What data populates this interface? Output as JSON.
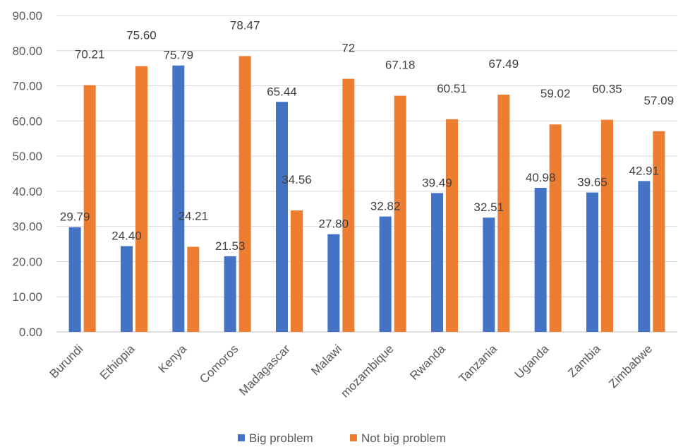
{
  "chart_data": {
    "type": "bar",
    "categories": [
      "Burundi",
      "Ethiopia",
      "Kenya",
      "Comoros",
      "Madagascar",
      "Malawi",
      "mozambique",
      "Rwanda",
      "Tanzania",
      "Uganda",
      "Zambia",
      "Zimbabwe"
    ],
    "series": [
      {
        "name": "Big problem",
        "color": "#4472C4",
        "values": [
          29.79,
          24.4,
          75.79,
          21.53,
          65.44,
          27.8,
          32.82,
          39.49,
          32.51,
          40.98,
          39.65,
          42.91
        ],
        "labels": [
          "29.79",
          "24.40",
          "75.79",
          "21.53",
          "65.44",
          "27.80",
          "32.82",
          "39.49",
          "32.51",
          "40.98",
          "39.65",
          "42.91"
        ]
      },
      {
        "name": "Not big problem",
        "color": "#ED7D31",
        "values": [
          70.21,
          75.6,
          24.21,
          78.47,
          34.56,
          72,
          67.18,
          60.51,
          67.49,
          59.02,
          60.35,
          57.09
        ],
        "labels": [
          "70.21",
          "75.60",
          "24.21",
          "78.47",
          "34.56",
          "72",
          "67.18",
          "60.51",
          "67.49",
          "59.02",
          "60.35",
          "57.09"
        ]
      }
    ],
    "ylim": [
      0,
      90
    ],
    "yticks": [
      "0.00",
      "10.00",
      "20.00",
      "30.00",
      "40.00",
      "50.00",
      "60.00",
      "70.00",
      "80.00",
      "90.00"
    ],
    "title": "",
    "xlabel": "",
    "ylabel": "",
    "grid": true,
    "legend_position": "bottom"
  }
}
